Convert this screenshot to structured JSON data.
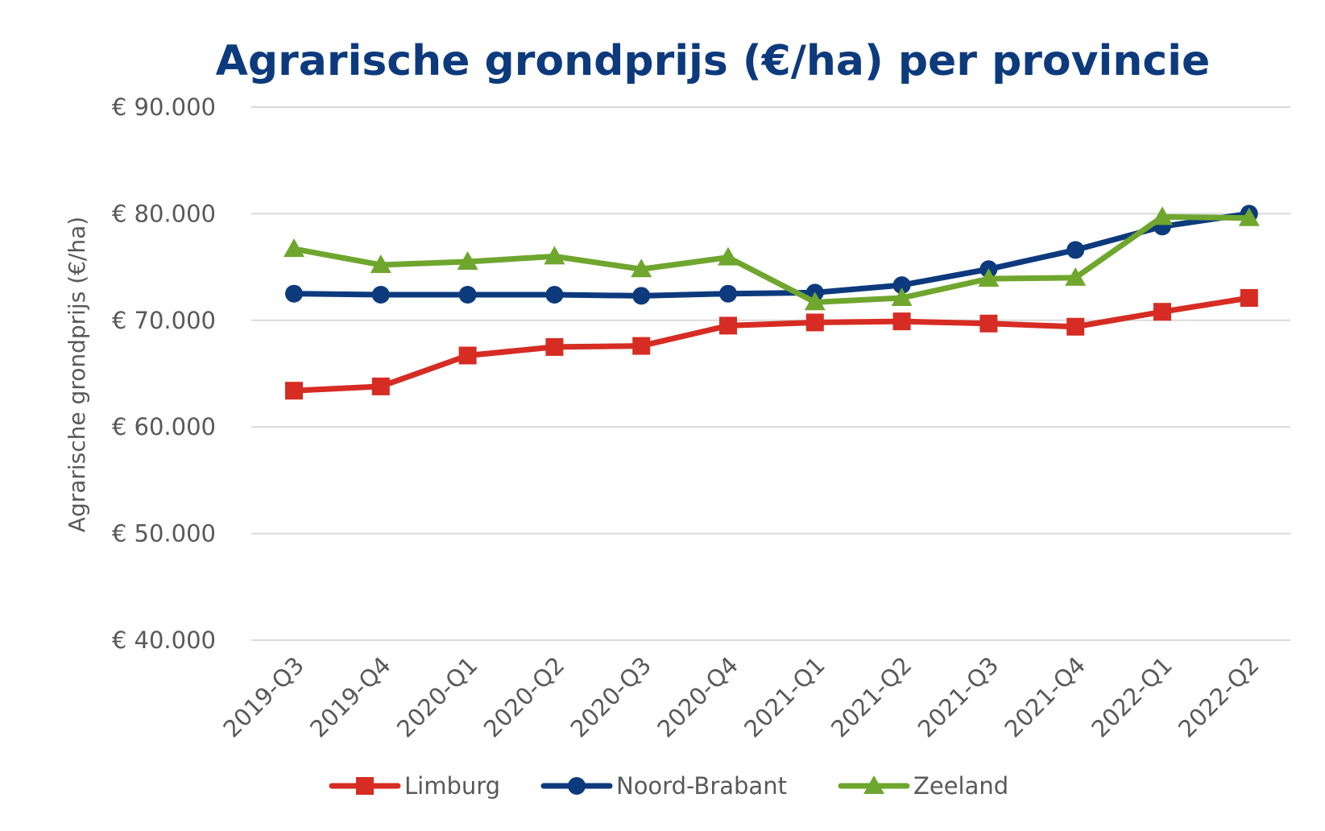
{
  "chart_data": {
    "type": "line",
    "title": "Agrarische grondprijs (€/ha) per provincie",
    "ylabel": "Agrarische grondprijs (€/ha)",
    "xlabel": "",
    "ylim": [
      40000,
      90000
    ],
    "yticks": [
      40000,
      50000,
      60000,
      70000,
      80000,
      90000
    ],
    "ytick_labels": [
      "€ 40.000",
      "€ 50.000",
      "€ 60.000",
      "€ 70.000",
      "€ 80.000",
      "€ 90.000"
    ],
    "grid": true,
    "legend_position": "bottom",
    "categories": [
      "2019-Q3",
      "2019-Q4",
      "2020-Q1",
      "2020-Q2",
      "2020-Q3",
      "2020-Q4",
      "2021-Q1",
      "2021-Q2",
      "2021-Q3",
      "2021-Q4",
      "2022-Q1",
      "2022-Q2"
    ],
    "series": [
      {
        "name": "Limburg",
        "color": "#d62c23",
        "marker": "square",
        "values": [
          63400,
          63800,
          66700,
          67500,
          67600,
          69500,
          69800,
          69900,
          69700,
          69400,
          70800,
          72100
        ]
      },
      {
        "name": "Noord-Brabant",
        "color": "#0d3a7d",
        "marker": "circle",
        "values": [
          72500,
          72400,
          72400,
          72400,
          72300,
          72500,
          72600,
          73300,
          74800,
          76600,
          78800,
          80000
        ]
      },
      {
        "name": "Zeeland",
        "color": "#6fa62e",
        "marker": "triangle",
        "values": [
          76700,
          75200,
          75500,
          76000,
          74800,
          75900,
          71700,
          72100,
          73900,
          74000,
          79700,
          79600
        ]
      }
    ]
  }
}
